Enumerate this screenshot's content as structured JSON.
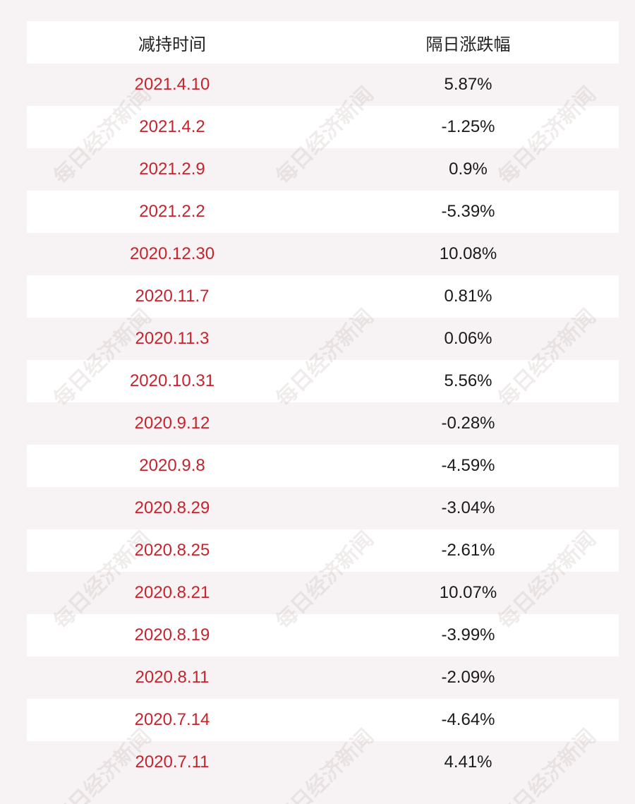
{
  "columns": {
    "date": "减持时间",
    "change": "隔日涨跌幅"
  },
  "rows": [
    {
      "date": "2021.4.10",
      "change": "5.87%"
    },
    {
      "date": "2021.4.2",
      "change": "-1.25%"
    },
    {
      "date": "2021.2.9",
      "change": "0.9%"
    },
    {
      "date": "2021.2.2",
      "change": "-5.39%"
    },
    {
      "date": "2020.12.30",
      "change": "10.08%"
    },
    {
      "date": "2020.11.7",
      "change": "0.81%"
    },
    {
      "date": "2020.11.3",
      "change": "0.06%"
    },
    {
      "date": "2020.10.31",
      "change": "5.56%"
    },
    {
      "date": "2020.9.12",
      "change": "-0.28%"
    },
    {
      "date": "2020.9.8",
      "change": "-4.59%"
    },
    {
      "date": "2020.8.29",
      "change": "-3.04%"
    },
    {
      "date": "2020.8.25",
      "change": "-2.61%"
    },
    {
      "date": "2020.8.21",
      "change": "10.07%"
    },
    {
      "date": "2020.8.19",
      "change": "-3.99%"
    },
    {
      "date": "2020.8.11",
      "change": "-2.09%"
    },
    {
      "date": "2020.7.14",
      "change": "-4.64%"
    },
    {
      "date": "2020.7.11",
      "change": "4.41%"
    }
  ],
  "watermark": "每日经济新闻",
  "colors": {
    "date_text": "#c8232c",
    "value_text": "#1a1a1a",
    "row_white": "#ffffff",
    "row_tinted": "#f7f3f4"
  }
}
